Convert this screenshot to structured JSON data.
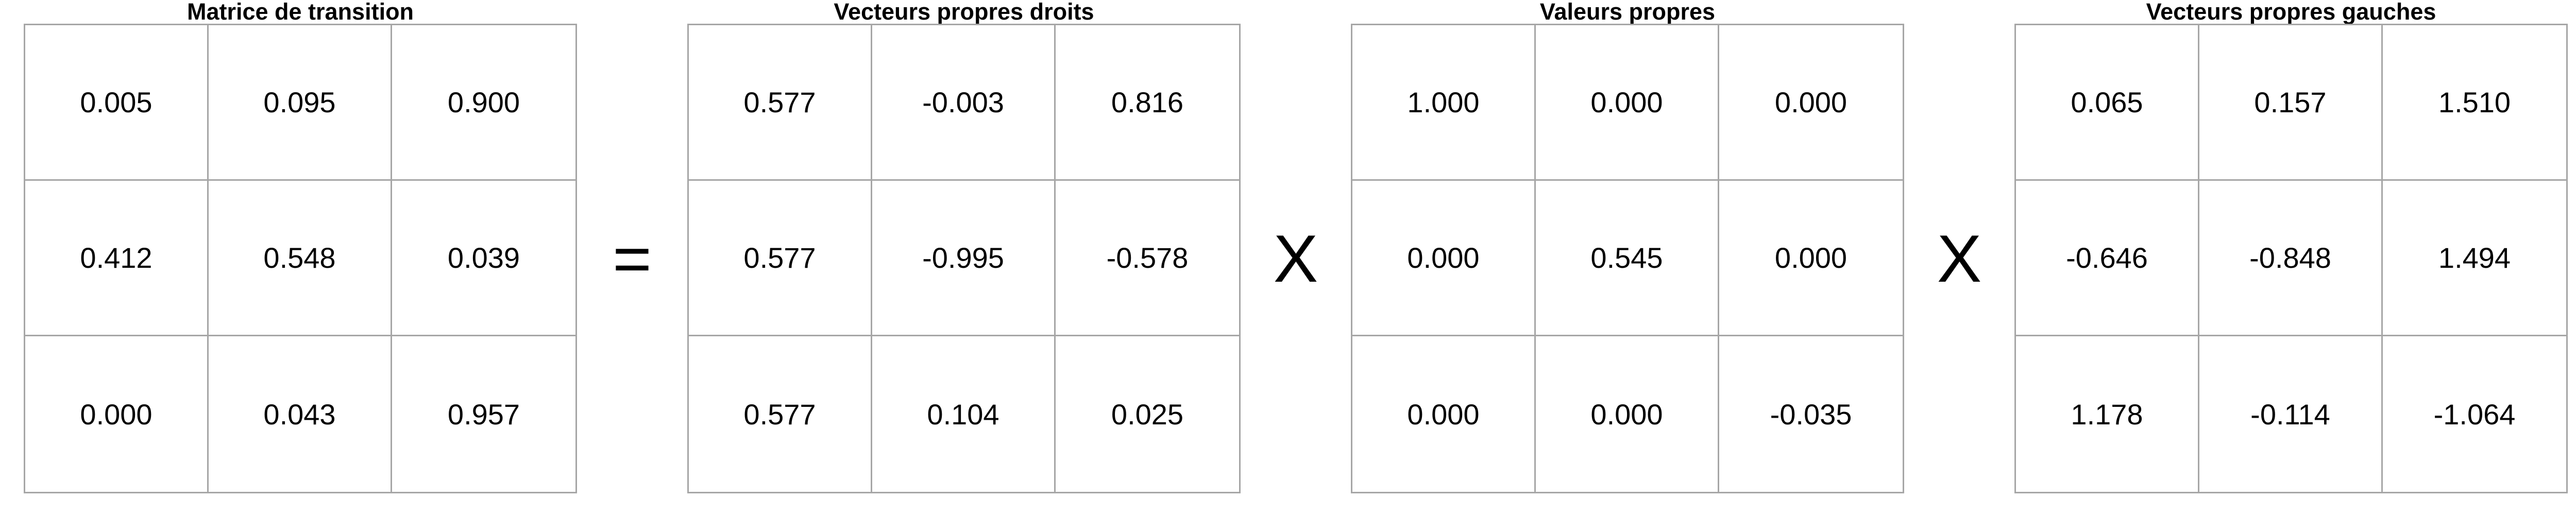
{
  "matrices": [
    {
      "title": "Matrice de transition",
      "rows": [
        [
          "0.005",
          "0.095",
          "0.900"
        ],
        [
          "0.412",
          "0.548",
          "0.039"
        ],
        [
          "0.000",
          "0.043",
          "0.957"
        ]
      ]
    },
    {
      "title": "Vecteurs propres droits",
      "rows": [
        [
          "0.577",
          "-0.003",
          "0.816"
        ],
        [
          "0.577",
          "-0.995",
          "-0.578"
        ],
        [
          "0.577",
          "0.104",
          "0.025"
        ]
      ]
    },
    {
      "title": "Valeurs propres",
      "rows": [
        [
          "1.000",
          "0.000",
          "0.000"
        ],
        [
          "0.000",
          "0.545",
          "0.000"
        ],
        [
          "0.000",
          "0.000",
          "-0.035"
        ]
      ]
    },
    {
      "title": "Vecteurs propres gauches",
      "rows": [
        [
          "0.065",
          "0.157",
          "1.510"
        ],
        [
          "-0.646",
          "-0.848",
          "1.494"
        ],
        [
          "1.178",
          "-0.114",
          "-1.064"
        ]
      ]
    }
  ],
  "operators": [
    "=",
    "X",
    "X"
  ]
}
